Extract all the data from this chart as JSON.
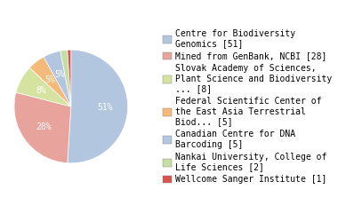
{
  "labels": [
    "Centre for Biodiversity\nGenomics [51]",
    "Mined from GenBank, NCBI [28]",
    "Slovak Academy of Sciences,\nPlant Science and Biodiversity\n... [8]",
    "Federal Scientific Center of\nthe East Asia Terrestrial\nBiod... [5]",
    "Canadian Centre for DNA\nBarcoding [5]",
    "Nankai University, College of\nLife Sciences [2]",
    "Wellcome Sanger Institute [1]"
  ],
  "values": [
    51,
    28,
    8,
    5,
    5,
    2,
    1
  ],
  "colors": [
    "#b3c6e0",
    "#e8a49c",
    "#d4e4a0",
    "#f5b97a",
    "#b3c6e0",
    "#c5dfa0",
    "#d9534f"
  ],
  "pct_labels": [
    "51%",
    "28%",
    "8%",
    "5%",
    "5%",
    "2%",
    "1%"
  ],
  "text_color": "white",
  "font_size": 7,
  "legend_font_size": 7
}
